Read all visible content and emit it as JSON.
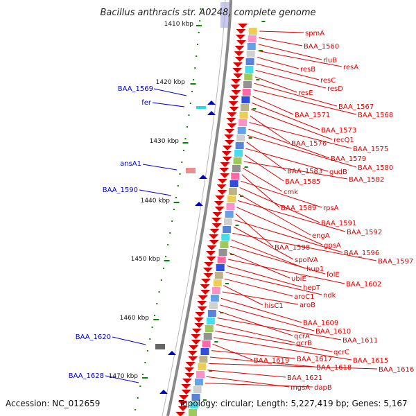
{
  "title": "Bacillus anthracis str. A0248, complete genome",
  "accession": "Accession: NC_012659",
  "summary": "Topology: circular; Length: 5,227,419 bp; Genes: 5,167",
  "colors": {
    "plus_strand": "#e00000",
    "minus_strand": "#0000cc",
    "backbone": "#888888",
    "ticks": "#008800"
  },
  "scale_ticks": [
    "1410 kbp",
    "1420 kbp",
    "1430 kbp",
    "1440 kbp",
    "1450 kbp",
    "1460 kbp",
    "1470 kbp"
  ],
  "minus_strand_genes": [
    "BAA_1569",
    "fer",
    "ansA1",
    "BAA_1590",
    "BAA_1620",
    "BAA_1628"
  ],
  "plus_strand_genes": [
    "spmA",
    "BAA_1560",
    "rluB",
    "resA",
    "resB",
    "resC",
    "resD",
    "resE",
    "BAA_1567",
    "BAA_1568",
    "BAA_1571",
    "BAA_1573",
    "recQ1",
    "BAA_1576",
    "BAA_1575",
    "BAA_1579",
    "BAA_1580",
    "BAA_1583",
    "gudB",
    "BAA_1585",
    "BAA_1582",
    "cmk",
    "BAA_1589",
    "rpsA",
    "BAA_1591",
    "engA",
    "BAA_1592",
    "gpsA",
    "BAA_1598",
    "BAA_1596",
    "spoIVA",
    "BAA_1597",
    "hup1",
    "folE",
    "ubiE",
    "BAA_1602",
    "hepT",
    "ndk",
    "aroC1",
    "hisC1",
    "aroB",
    "BAA_1609",
    "BAA_1610",
    "qcrA",
    "BAA_1611",
    "qcrB",
    "qcrC",
    "BAA_1615",
    "BAA_1619",
    "BAA_1617",
    "BAA_1618",
    "BAA_1616",
    "BAA_1621",
    "mgsA",
    "dapB"
  ]
}
